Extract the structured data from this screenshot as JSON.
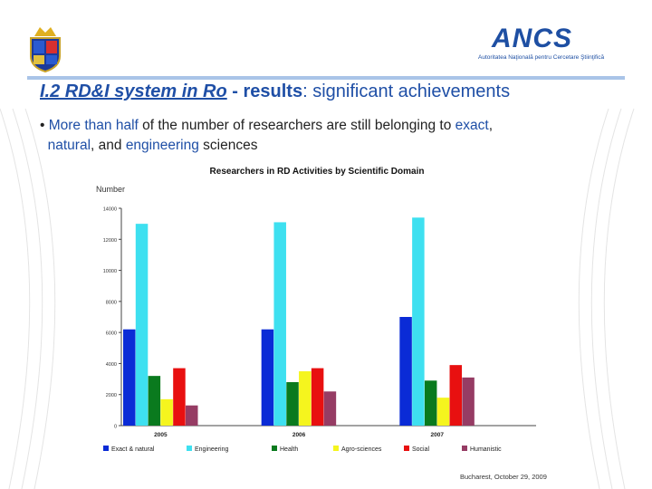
{
  "header": {
    "logo_text": "ANCS",
    "logo_sub": "Autoritatea Naţională pentru Cercetare Ştiinţifică"
  },
  "slide": {
    "title_part1": "I.2 RD&I system in Ro",
    "title_part2": " - results",
    "title_part3": ": significant achievements",
    "bullet_prefix": "• ",
    "bullet_hl1": "More than half",
    "bullet_mid1": " of the number of researchers are still belonging to ",
    "bullet_hl2": "exact",
    "bullet_sep1": ",",
    "bullet_hl3": "natural",
    "bullet_mid2": ", and ",
    "bullet_hl4": "engineering",
    "bullet_end": " sciences"
  },
  "footer": {
    "text": "Bucharest, October 29,  2009"
  },
  "colors": {
    "accent": "#1f4fa6"
  },
  "chart_data": {
    "type": "bar",
    "title": "Researchers in RD Activities by Scientific Domain",
    "ylabel": "Number",
    "xlabel": "",
    "categories": [
      "2005",
      "2006",
      "2007"
    ],
    "ylim": [
      0,
      14000
    ],
    "yticks": [
      "0",
      "2000",
      "4000",
      "6000",
      "8000",
      "10000",
      "12000",
      "14000"
    ],
    "series": [
      {
        "name": "Exact & natural",
        "color": "#0a2bd6",
        "values": [
          6200,
          6200,
          7000
        ]
      },
      {
        "name": "Engineering",
        "color": "#3ee0f0",
        "values": [
          13000,
          13100,
          13400
        ]
      },
      {
        "name": "Health",
        "color": "#0a7a1e",
        "values": [
          3200,
          2800,
          2900
        ]
      },
      {
        "name": "Agro-sciences",
        "color": "#f5f51e",
        "values": [
          1700,
          3500,
          1800
        ]
      },
      {
        "name": "Social",
        "color": "#e81010",
        "values": [
          3700,
          3700,
          3900
        ]
      },
      {
        "name": "Humanistic",
        "color": "#963c64",
        "values": [
          1300,
          2200,
          3100
        ]
      }
    ],
    "legend_position": "bottom",
    "grid": false
  }
}
